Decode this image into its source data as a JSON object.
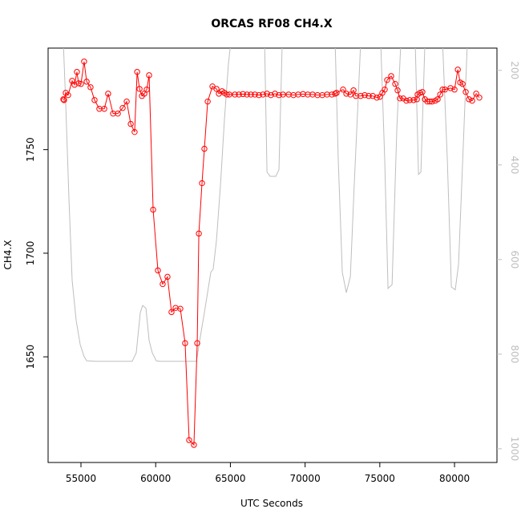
{
  "chart_data": {
    "type": "line",
    "title": "ORCAS RF08 CH4.X",
    "xlabel": "UTC Seconds",
    "ylabel": "CH4.X",
    "xlim": [
      52800,
      82840
    ],
    "xticks": [
      55000,
      60000,
      65000,
      70000,
      75000,
      80000
    ],
    "ylim": [
      1599,
      1799
    ],
    "yticks": [
      1650,
      1700,
      1750
    ],
    "y2lim": [
      1029,
      153
    ],
    "y2ticks": [
      200,
      400,
      600,
      800,
      1000
    ],
    "series": [
      {
        "color": "#ff0000",
        "markers": true,
        "x": [
          53820,
          53870,
          53980,
          54140,
          54410,
          54570,
          54730,
          54840,
          55000,
          55210,
          55380,
          55640,
          55910,
          56230,
          56560,
          56820,
          57150,
          57470,
          57790,
          58060,
          58330,
          58590,
          58760,
          58920,
          59080,
          59240,
          59400,
          59560,
          59830,
          60150,
          60470,
          60790,
          61060,
          61330,
          61650,
          61970,
          62240,
          62560,
          62780,
          62890,
          63100,
          63260,
          63480,
          63800,
          64070,
          64230,
          64440,
          64600,
          64760,
          64930,
          65300,
          65570,
          65840,
          66110,
          66370,
          66640,
          66910,
          67180,
          67450,
          67710,
          67980,
          68250,
          68520,
          68900,
          69220,
          69540,
          69860,
          70180,
          70500,
          70830,
          71150,
          71470,
          71790,
          72010,
          72110,
          72540,
          72760,
          73030,
          73240,
          73400,
          73720,
          73990,
          74260,
          74530,
          74800,
          75010,
          75170,
          75330,
          75490,
          75760,
          76030,
          76190,
          76350,
          76570,
          76780,
          77000,
          77260,
          77480,
          77530,
          77690,
          77850,
          78020,
          78180,
          78340,
          78500,
          78710,
          78870,
          79040,
          79200,
          79360,
          79730,
          80000,
          80220,
          80380,
          80540,
          80750,
          80970,
          81180,
          81450,
          81660
        ],
        "values": [
          1774.3,
          1773.9,
          1777.4,
          1776.3,
          1783.2,
          1781.3,
          1787.5,
          1782.0,
          1781.7,
          1792.5,
          1782.8,
          1780.1,
          1773.9,
          1769.7,
          1769.7,
          1777.0,
          1767.4,
          1767.4,
          1770.1,
          1773.2,
          1762.4,
          1758.5,
          1787.5,
          1779.3,
          1775.9,
          1777.0,
          1779.0,
          1785.9,
          1721.0,
          1691.7,
          1685.1,
          1688.6,
          1671.6,
          1673.6,
          1673.2,
          1656.6,
          1609.8,
          1607.5,
          1656.6,
          1709.5,
          1733.8,
          1750.4,
          1773.2,
          1780.5,
          1779.3,
          1777.0,
          1778.2,
          1777.4,
          1776.6,
          1776.6,
          1776.6,
          1776.6,
          1776.8,
          1776.6,
          1776.6,
          1776.6,
          1776.3,
          1776.6,
          1777.0,
          1776.3,
          1777.0,
          1776.3,
          1776.6,
          1776.6,
          1776.3,
          1776.6,
          1776.8,
          1776.6,
          1776.6,
          1776.3,
          1776.3,
          1776.6,
          1776.6,
          1777.0,
          1777.4,
          1779.0,
          1777.0,
          1776.6,
          1778.6,
          1775.9,
          1775.9,
          1776.3,
          1775.9,
          1775.9,
          1775.1,
          1775.5,
          1777.4,
          1779.0,
          1783.6,
          1785.5,
          1781.7,
          1778.6,
          1774.7,
          1774.7,
          1773.6,
          1773.9,
          1773.9,
          1774.3,
          1776.6,
          1777.4,
          1777.8,
          1774.3,
          1773.2,
          1773.2,
          1773.2,
          1773.6,
          1774.3,
          1776.6,
          1779.0,
          1779.0,
          1779.7,
          1779.0,
          1788.6,
          1782.4,
          1781.7,
          1777.8,
          1774.3,
          1773.6,
          1777.0,
          1775.1
        ]
      },
      {
        "color": "#bebebe",
        "axis": "y2",
        "x": [
          53820,
          53980,
          54200,
          54410,
          54680,
          54950,
          55210,
          55380,
          56020,
          58430,
          58700,
          58970,
          59130,
          59350,
          59560,
          59770,
          60040,
          60310,
          62730,
          62990,
          63260,
          63690,
          63850,
          64070,
          64340,
          64600,
          64870,
          65030,
          67290,
          67450,
          67660,
          68040,
          68250,
          68470,
          72010,
          72220,
          72490,
          72760,
          73030,
          73290,
          73560,
          73720,
          75060,
          75330,
          75550,
          75820,
          76140,
          76410,
          77370,
          77590,
          77750,
          78020,
          79200,
          79520,
          79790,
          80050,
          80270,
          80590,
          80860,
          81660
        ],
        "values": [
          140,
          271,
          475,
          644,
          729,
          780,
          805,
          814,
          815,
          815,
          797,
          712,
          697,
          703,
          771,
          797,
          814,
          815,
          815,
          763,
          712,
          627,
          620,
          559,
          441,
          305,
          186,
          140,
          140,
          415,
          424,
          424,
          410,
          140,
          140,
          390,
          627,
          670,
          636,
          441,
          254,
          140,
          140,
          390,
          661,
          653,
          322,
          140,
          140,
          420,
          415,
          140,
          140,
          390,
          658,
          664,
          610,
          356,
          140,
          140
        ]
      }
    ]
  }
}
